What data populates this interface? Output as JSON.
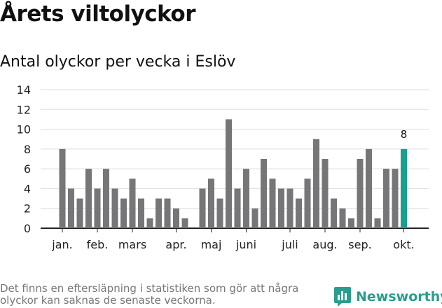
{
  "header": {
    "title": "Årets viltolyckor",
    "subtitle": "Antal olyckor per vecka i Eslöv"
  },
  "footer": {
    "note": "Det finns en eftersläpning i statistiken som gör att några olyckor kan saknas de senaste veckorna.",
    "brand": "Newsworthy"
  },
  "colors": {
    "bar": "#767679",
    "highlight": "#1a9e8f",
    "brand": "#2a9d8f",
    "grid": "#dddddd"
  },
  "chart_data": {
    "type": "bar",
    "title": "Antal olyckor per vecka i Eslöv",
    "xlabel": "",
    "ylabel": "",
    "ylim": [
      0,
      14
    ],
    "yticks": [
      0,
      2,
      4,
      6,
      8,
      10,
      12,
      14
    ],
    "grid": true,
    "weeks": [
      1,
      2,
      3,
      4,
      5,
      6,
      7,
      8,
      9,
      10,
      11,
      12,
      13,
      14,
      15,
      16,
      17,
      18,
      19,
      20,
      21,
      22,
      23,
      24,
      25,
      26,
      27,
      28,
      29,
      30,
      31,
      32,
      33,
      34,
      35,
      36,
      37,
      38,
      39,
      40
    ],
    "values": [
      8,
      4,
      3,
      6,
      4,
      6,
      4,
      3,
      5,
      3,
      1,
      3,
      3,
      2,
      1,
      null,
      4,
      5,
      3,
      11,
      4,
      6,
      2,
      7,
      5,
      4,
      4,
      3,
      5,
      9,
      7,
      3,
      2,
      1,
      7,
      8,
      1,
      6,
      6,
      8
    ],
    "highlight_week": 40,
    "highlight_label": "8",
    "month_ticks": [
      {
        "label": "jan.",
        "week": 1
      },
      {
        "label": "feb.",
        "week": 5
      },
      {
        "label": "mars",
        "week": 9
      },
      {
        "label": "apr.",
        "week": 14
      },
      {
        "label": "maj",
        "week": 18
      },
      {
        "label": "juni",
        "week": 22
      },
      {
        "label": "juli",
        "week": 27
      },
      {
        "label": "aug.",
        "week": 31
      },
      {
        "label": "sep.",
        "week": 35
      },
      {
        "label": "okt.",
        "week": 40
      }
    ]
  }
}
